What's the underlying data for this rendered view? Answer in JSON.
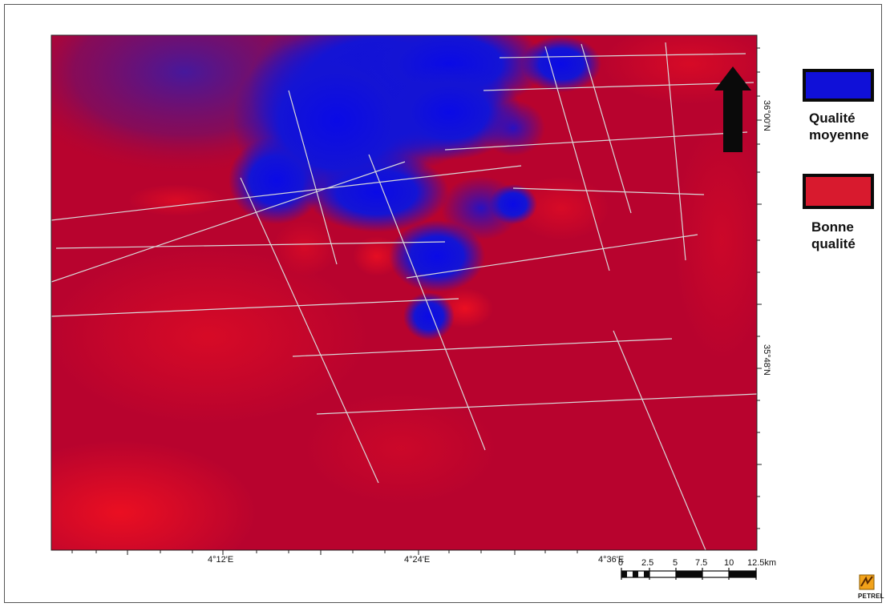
{
  "legend": {
    "items": [
      {
        "label_line1": "Qualité",
        "label_line2": "moyenne",
        "color": "#1010d8"
      },
      {
        "label_line1": "Bonne",
        "label_line2": "qualité",
        "color": "#d81a2e"
      }
    ]
  },
  "map": {
    "background_color": "#b8032e",
    "low_quality_color": "#1010d8",
    "high_quality_color": "#d81a2e",
    "grid_line_color": "#d9d9d9",
    "north_arrow": "north-arrow-icon"
  },
  "axes": {
    "x_labels": [
      "4°12'E",
      "4°24'E",
      "4°36'E"
    ],
    "y_labels": [
      "36°00'N",
      "35°48'N"
    ]
  },
  "scale_bar": {
    "ticks": [
      "0",
      "2.5",
      "5",
      "7.5",
      "10",
      "12.5km"
    ]
  },
  "logo": {
    "text": "PETREL"
  }
}
